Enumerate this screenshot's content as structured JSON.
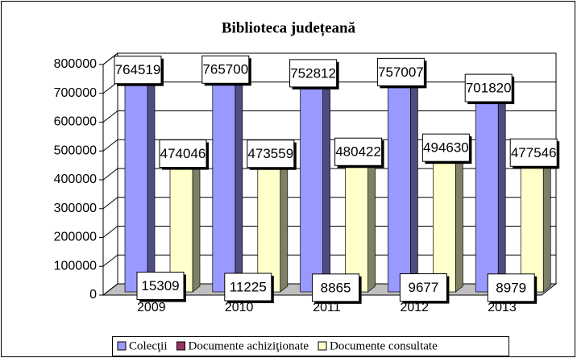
{
  "chart_data": {
    "type": "bar3d",
    "title": "Biblioteca județeană",
    "categories": [
      "2009",
      "2010",
      "2011",
      "2012",
      "2013"
    ],
    "series": [
      {
        "name": "Colecţii",
        "color": "#9999ff",
        "values": [
          764519,
          765700,
          752812,
          757007,
          701820
        ]
      },
      {
        "name": "Documente achiziţionate",
        "color": "#993366",
        "values": [
          15309,
          11225,
          8865,
          9677,
          8979
        ]
      },
      {
        "name": "Documente consultate",
        "color": "#ffffcc",
        "values": [
          474046,
          473559,
          480422,
          494630,
          477546
        ]
      }
    ],
    "ylim": [
      0,
      800000
    ],
    "yticks": [
      0,
      100000,
      200000,
      300000,
      400000,
      500000,
      600000,
      700000,
      800000
    ],
    "grid": true,
    "legend": "bottom"
  }
}
